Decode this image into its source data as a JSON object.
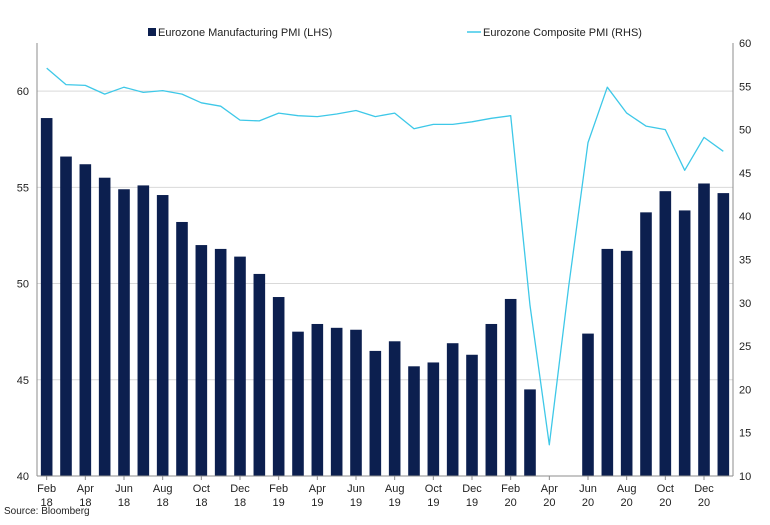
{
  "chart_data": {
    "type": "bar",
    "title": "",
    "categories": [
      "Feb 18",
      "Mar 18",
      "Apr 18",
      "May 18",
      "Jun 18",
      "Jul 18",
      "Aug 18",
      "Sep 18",
      "Oct 18",
      "Nov 18",
      "Dec 18",
      "Jan 19",
      "Feb 19",
      "Mar 19",
      "Apr 19",
      "May 19",
      "Jun 19",
      "Jul 19",
      "Aug 19",
      "Sep 19",
      "Oct 19",
      "Nov 19",
      "Dec 19",
      "Jan 20",
      "Feb 20",
      "Mar 20",
      "Apr 20",
      "May 20",
      "Jun 20",
      "Jul 20",
      "Aug 20",
      "Sep 20",
      "Oct 20",
      "Nov 20",
      "Dec 20",
      "Jan 21"
    ],
    "x_tick_labels": [
      {
        "index": 0,
        "month": "Feb",
        "year": "18"
      },
      {
        "index": 2,
        "month": "Apr",
        "year": "18"
      },
      {
        "index": 4,
        "month": "Jun",
        "year": "18"
      },
      {
        "index": 6,
        "month": "Aug",
        "year": "18"
      },
      {
        "index": 8,
        "month": "Oct",
        "year": "18"
      },
      {
        "index": 10,
        "month": "Dec",
        "year": "18"
      },
      {
        "index": 12,
        "month": "Feb",
        "year": "19"
      },
      {
        "index": 14,
        "month": "Apr",
        "year": "19"
      },
      {
        "index": 16,
        "month": "Jun",
        "year": "19"
      },
      {
        "index": 18,
        "month": "Aug",
        "year": "19"
      },
      {
        "index": 20,
        "month": "Oct",
        "year": "19"
      },
      {
        "index": 22,
        "month": "Dec",
        "year": "19"
      },
      {
        "index": 24,
        "month": "Feb",
        "year": "20"
      },
      {
        "index": 26,
        "month": "Apr",
        "year": "20"
      },
      {
        "index": 28,
        "month": "Jun",
        "year": "20"
      },
      {
        "index": 30,
        "month": "Aug",
        "year": "20"
      },
      {
        "index": 32,
        "month": "Oct",
        "year": "20"
      },
      {
        "index": 34,
        "month": "Dec",
        "year": "20"
      }
    ],
    "series": [
      {
        "name": "Eurozone Manufacturing PMI (LHS)",
        "type": "bar",
        "axis": "left",
        "color": "#0c1f4f",
        "values": [
          58.6,
          56.6,
          56.2,
          55.5,
          54.9,
          55.1,
          54.6,
          53.2,
          52.0,
          51.8,
          51.4,
          50.5,
          49.3,
          47.5,
          47.9,
          47.7,
          47.6,
          46.5,
          47.0,
          45.7,
          45.9,
          46.9,
          46.3,
          47.9,
          49.2,
          44.5,
          null,
          null,
          47.4,
          51.8,
          51.7,
          53.7,
          54.8,
          53.8,
          55.2,
          54.7
        ]
      },
      {
        "name": "Eurozone Composite PMI (RHS)",
        "type": "line",
        "axis": "right",
        "color": "#3ec8e8",
        "values": [
          57.1,
          55.2,
          55.1,
          54.1,
          54.9,
          54.3,
          54.5,
          54.1,
          53.1,
          52.7,
          51.1,
          51.0,
          51.9,
          51.6,
          51.5,
          51.8,
          52.2,
          51.5,
          51.9,
          50.1,
          50.6,
          50.6,
          50.9,
          51.3,
          51.6,
          29.7,
          13.6,
          31.9,
          48.5,
          54.9,
          51.9,
          50.4,
          50.0,
          45.3,
          49.1,
          47.5
        ]
      }
    ],
    "left_axis": {
      "min": 40,
      "max": 62.5,
      "ticks": [
        40,
        45,
        50,
        55,
        60
      ]
    },
    "right_axis": {
      "min": 10,
      "max": 60,
      "ticks": [
        10,
        15,
        20,
        25,
        30,
        35,
        40,
        45,
        50,
        55,
        60
      ]
    },
    "grid": true,
    "legend_position": "top",
    "source": "Source: Bloomberg"
  }
}
